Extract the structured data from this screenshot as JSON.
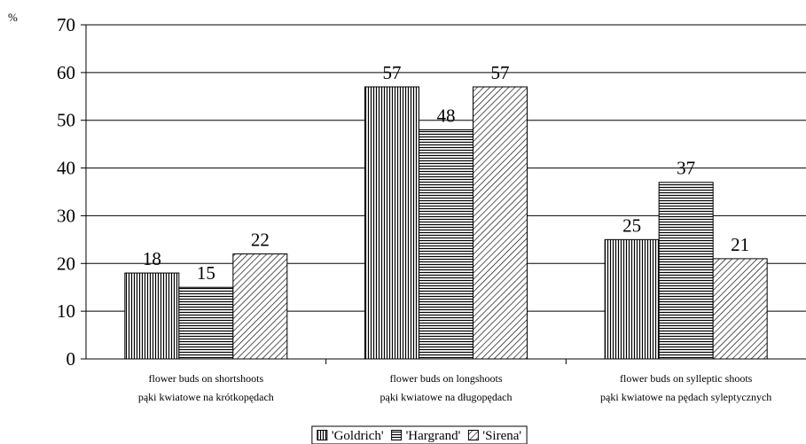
{
  "chart_data": {
    "type": "bar",
    "unit_label": "%",
    "categories": [
      {
        "line1": "flower buds on shortshoots",
        "line2": "pąki kwiatowe na krótkopędach"
      },
      {
        "line1": "flower buds on longshoots",
        "line2": "pąki kwiatowe na długopędach"
      },
      {
        "line1": "flower buds on sylleptic shoots",
        "line2": "pąki kwiatowe na pędach syleptycznych"
      }
    ],
    "series": [
      {
        "name": "'Goldrich'",
        "pattern": "vertical",
        "values": [
          18,
          57,
          25
        ]
      },
      {
        "name": "'Hargrand'",
        "pattern": "horizontal",
        "values": [
          15,
          48,
          37
        ]
      },
      {
        "name": "'Sirena'",
        "pattern": "diagonal",
        "values": [
          22,
          57,
          21
        ]
      }
    ],
    "ylim": [
      0,
      70
    ],
    "ytick_step": 10,
    "grid": true,
    "legend_position": "bottom-center",
    "colors": {
      "stroke": "#000000",
      "grid": "#000000",
      "background": "#ffffff"
    }
  }
}
